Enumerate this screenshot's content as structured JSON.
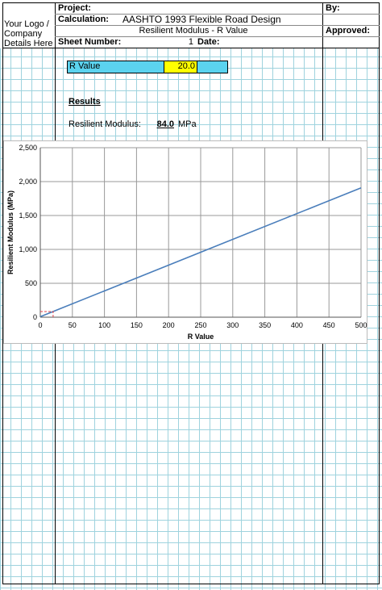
{
  "header": {
    "logo": "Your Logo / Company Details Here",
    "project_label": "Project:",
    "by_label": "By:",
    "calculation_label": "Calculation:",
    "calculation": "AASHTO 1993 Flexible Road Design",
    "subtitle": "Resilient Modulus - R Value",
    "approved_label": "Approved:",
    "sheet_label": "Sheet Number:",
    "sheet_number": "1",
    "date_label": "Date:"
  },
  "input": {
    "label": "R Value",
    "value": "20.0"
  },
  "results": {
    "title": "Results",
    "label": "Resilient Modulus:",
    "value": "84.0",
    "unit": "MPa"
  },
  "chart_data": {
    "type": "line",
    "x_label": "R Value",
    "y_label": "Resilient Modulus (MPa)",
    "xlim": [
      0,
      500
    ],
    "xticks": [
      0,
      50,
      100,
      150,
      200,
      250,
      300,
      350,
      400,
      450,
      500
    ],
    "ylim": [
      0,
      2500
    ],
    "yticks": [
      0,
      500,
      {
        "value": 1000,
        "label": "1,000"
      },
      {
        "value": 1500,
        "label": "1,500"
      },
      {
        "value": 2000,
        "label": "2,000"
      },
      {
        "value": 2500,
        "label": "2,500"
      }
    ],
    "grid": true,
    "series": [
      {
        "x": [
          0,
          500
        ],
        "values": [
          8,
          1908
        ],
        "color": "#4a7ebb",
        "dash": false
      },
      {
        "x": [
          0,
          20,
          20
        ],
        "values": [
          84,
          84,
          0
        ],
        "color": "#e0404a",
        "dash": true
      }
    ]
  }
}
